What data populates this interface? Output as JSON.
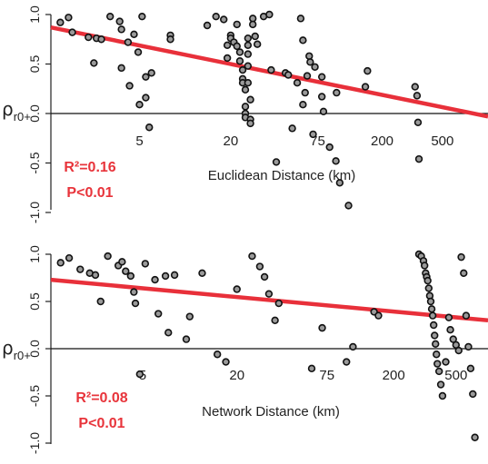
{
  "colors": {
    "regression": "#e8303a",
    "stat_text": "#e8343b",
    "point_fill": "#9a9a9a",
    "point_stroke": "#111111"
  },
  "chart_data": [
    {
      "type": "scatter",
      "ylabel": "ρ",
      "ylabel_sub": "r0+",
      "xlabel": "Euclidean Distance (km)",
      "x_scale": "log",
      "x_ticks": [
        5,
        20,
        75,
        200,
        500
      ],
      "y_ticks": [
        -1.0,
        -0.5,
        0.0,
        0.5,
        1.0
      ],
      "y_tick_labels": [
        "-1.0",
        "-0.5",
        "0.0",
        "0.5",
        "1.0"
      ],
      "xlim": [
        1.3,
        1000
      ],
      "ylim": [
        -1.05,
        1.05
      ],
      "annotations": [
        "R²=0.16",
        "P<0.01"
      ],
      "trend": {
        "x": [
          1.3,
          1000
        ],
        "y": [
          0.87,
          -0.03
        ]
      },
      "points": {
        "x": [
          1.5,
          1.7,
          1.8,
          2.3,
          2.6,
          2.8,
          2.5,
          3.2,
          3.7,
          3.8,
          3.8,
          4.2,
          4.6,
          5.2,
          5.5,
          5.5,
          6.0,
          4.9,
          4.3,
          5.8,
          5.0,
          8,
          8,
          14,
          16,
          18,
          19,
          19,
          20,
          20,
          21,
          22,
          22,
          23,
          23,
          24,
          24,
          24,
          25,
          25,
          25,
          25,
          26,
          26,
          26,
          26,
          26,
          27,
          27,
          27,
          28,
          28,
          29,
          30,
          33,
          36,
          37,
          40,
          46,
          48,
          51,
          55,
          58,
          60,
          60,
          62,
          64,
          66,
          67,
          70,
          72,
          80,
          80,
          82,
          90,
          99,
          100,
          105,
          120,
          155,
          160,
          330,
          340,
          345,
          350
        ],
        "y": [
          0.92,
          0.97,
          0.82,
          0.77,
          0.76,
          0.75,
          0.51,
          0.98,
          0.93,
          0.85,
          0.46,
          0.72,
          0.8,
          0.98,
          0.37,
          0.16,
          0.41,
          0.62,
          0.28,
          -0.14,
          0.09,
          0.79,
          0.75,
          0.89,
          0.98,
          0.95,
          0.69,
          0.56,
          0.79,
          0.76,
          0.72,
          0.9,
          0.68,
          0.62,
          0.53,
          0.44,
          0.35,
          0.31,
          0.24,
          0.07,
          0.0,
          -0.04,
          0.76,
          0.69,
          0.6,
          0.48,
          0.31,
          0.14,
          -0.06,
          -0.1,
          0.96,
          0.9,
          0.78,
          0.7,
          0.98,
          1.0,
          0.44,
          -0.49,
          0.41,
          0.39,
          -0.15,
          0.31,
          0.96,
          0.74,
          0.09,
          0.21,
          0.38,
          0.58,
          0.52,
          -0.21,
          0.47,
          0.37,
          0.17,
          0.02,
          -0.34,
          -0.48,
          0.21,
          -0.7,
          -0.93,
          0.27,
          0.43,
          0.27,
          0.18,
          -0.09,
          -0.46
        ]
      }
    },
    {
      "type": "scatter",
      "ylabel": "ρ",
      "ylabel_sub": "r0+",
      "xlabel": "Network Distance (km)",
      "x_scale": "log",
      "x_ticks": [
        5,
        20,
        75,
        200,
        500
      ],
      "y_ticks": [
        -1.0,
        -0.5,
        0.0,
        0.5,
        1.0
      ],
      "y_tick_labels": [
        "-1.0",
        "-0.5",
        "0.0",
        "0.5",
        "1.0"
      ],
      "xlim": [
        1.3,
        800
      ],
      "ylim": [
        -1.05,
        1.05
      ],
      "annotations": [
        "R²=0.08",
        "P<0.01"
      ],
      "trend": {
        "x": [
          1.3,
          800
        ],
        "y": [
          0.73,
          0.3
        ]
      },
      "points": {
        "x": [
          1.5,
          1.7,
          2.0,
          2.3,
          2.5,
          2.7,
          3.0,
          3.5,
          3.7,
          3.9,
          4.2,
          4.4,
          4.5,
          4.8,
          5.2,
          6.0,
          6.3,
          7.0,
          7.3,
          8.0,
          9.5,
          10.0,
          12,
          15,
          17,
          20,
          25,
          28,
          30,
          32,
          35,
          37,
          60,
          70,
          100,
          110,
          150,
          160,
          290,
          300,
          310,
          315,
          320,
          325,
          330,
          335,
          340,
          345,
          350,
          355,
          360,
          365,
          370,
          375,
          380,
          390,
          400,
          410,
          430,
          450,
          460,
          480,
          500,
          520,
          540,
          560,
          580,
          600,
          620,
          640,
          660
        ],
        "y": [
          0.91,
          0.96,
          0.84,
          0.8,
          0.78,
          0.5,
          0.98,
          0.88,
          0.92,
          0.82,
          0.77,
          0.6,
          0.48,
          -0.27,
          0.9,
          0.73,
          0.37,
          0.77,
          0.17,
          0.78,
          0.1,
          0.34,
          0.8,
          -0.06,
          -0.14,
          0.63,
          0.98,
          0.87,
          0.76,
          0.58,
          0.3,
          0.48,
          -0.21,
          0.22,
          -0.14,
          0.02,
          0.39,
          0.35,
          1.0,
          0.98,
          0.93,
          0.88,
          0.8,
          0.76,
          0.72,
          0.64,
          0.56,
          0.5,
          0.42,
          0.35,
          0.25,
          0.14,
          0.05,
          -0.06,
          -0.16,
          -0.24,
          -0.38,
          -0.5,
          -0.14,
          0.33,
          0.2,
          0.1,
          0.04,
          -0.02,
          0.97,
          0.8,
          0.35,
          0.02,
          -0.21,
          -0.48,
          -0.94
        ]
      }
    }
  ]
}
